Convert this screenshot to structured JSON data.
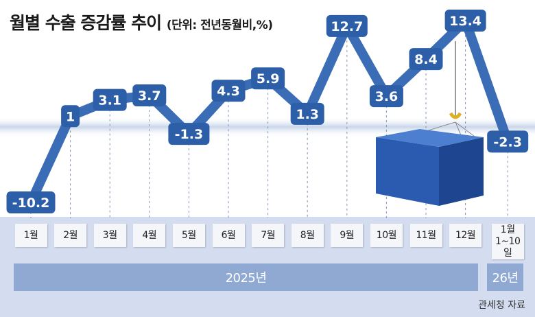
{
  "title": "월별 수출 증감률 추이",
  "unit": "(단위: 전년동월비,%)",
  "source": "관세청 자료",
  "colors": {
    "line": "#3b6db6",
    "label_bg": "#2d5ea8",
    "panel": "#d3ddef",
    "year_bar": "#8fa9d2"
  },
  "chart_data": {
    "type": "line",
    "title": "월별 수출 증감률 추이",
    "ylabel": "(단위: 전년동월비,%)",
    "categories": [
      "1월",
      "2월",
      "3월",
      "4월",
      "5월",
      "6월",
      "7월",
      "8월",
      "9월",
      "10월",
      "11월",
      "12월",
      "1월 1~10일"
    ],
    "values": [
      -10.2,
      1,
      3.1,
      3.7,
      -1.3,
      4.3,
      5.9,
      1.3,
      12.7,
      3.6,
      8.4,
      13.4,
      -2.3
    ],
    "labels": [
      "-10.2",
      "1",
      "3.1",
      "3.7",
      "-1.3",
      "4.3",
      "5.9",
      "1.3",
      "12.7",
      "3.6",
      "8.4",
      "13.4",
      "-2.3"
    ],
    "years": [
      {
        "label": "2025년"
      },
      {
        "label": "26년"
      }
    ],
    "grid": "vertical dashed"
  }
}
